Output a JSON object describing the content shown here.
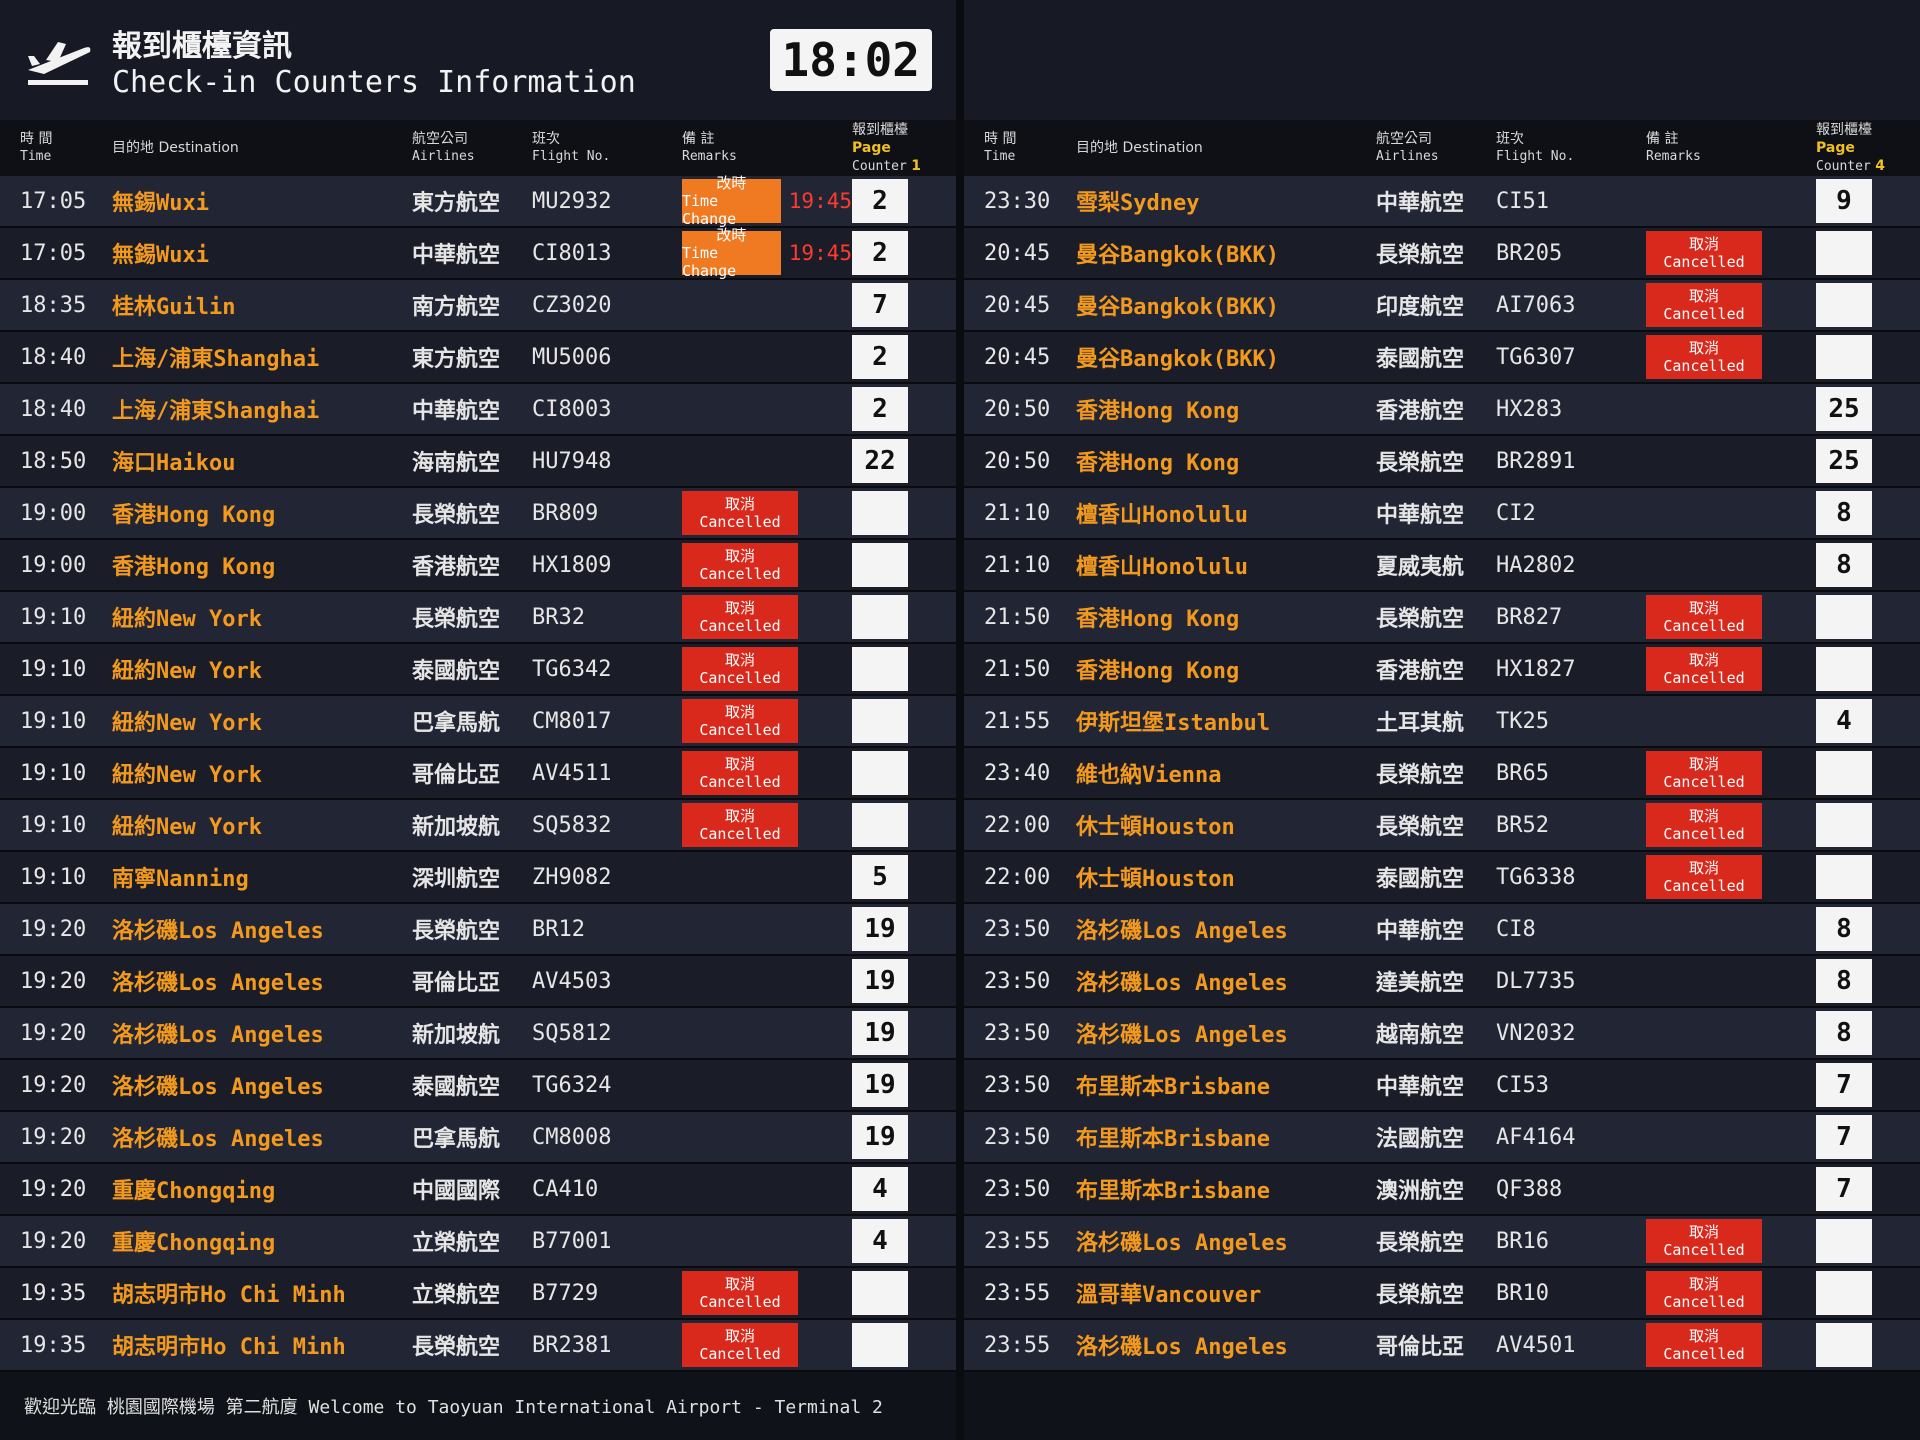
{
  "header": {
    "title_zh": "報到櫃檯資訊",
    "title_en": "Check-in Counters Information",
    "clock": "18:02"
  },
  "columns": {
    "time_zh": "時 間",
    "time_en": "Time",
    "dest": "目的地 Destination",
    "airline_zh": "航空公司",
    "airline_en": "Airlines",
    "flight_zh": "班次",
    "flight_en": "Flight No.",
    "remarks_zh": "備 註",
    "remarks_en": "Remarks",
    "counter_zh": "報到櫃檯",
    "counter_en": "Counter",
    "page_label": "Page"
  },
  "panels": [
    {
      "page": "1",
      "rows": [
        {
          "time": "17:05",
          "dest": "無錫Wuxi",
          "airline": "東方航空",
          "flight": "MU2932",
          "remark": {
            "zh": "改時",
            "en": "Time Change"
          },
          "new_time": "19:45",
          "counter": 2
        },
        {
          "time": "17:05",
          "dest": "無錫Wuxi",
          "airline": "中華航空",
          "flight": "CI8013",
          "remark": {
            "zh": "改時",
            "en": "Time Change"
          },
          "new_time": "19:45",
          "counter": 2
        },
        {
          "time": "18:35",
          "dest": "桂林Guilin",
          "airline": "南方航空",
          "flight": "CZ3020",
          "counter": 7
        },
        {
          "time": "18:40",
          "dest": "上海/浦東Shanghai",
          "airline": "東方航空",
          "flight": "MU5006",
          "counter": 2
        },
        {
          "time": "18:40",
          "dest": "上海/浦東Shanghai",
          "airline": "中華航空",
          "flight": "CI8003",
          "counter": 2
        },
        {
          "time": "18:50",
          "dest": "海口Haikou",
          "airline": "海南航空",
          "flight": "HU7948",
          "counter": 22
        },
        {
          "time": "19:00",
          "dest": "香港Hong Kong",
          "airline": "長榮航空",
          "flight": "BR809",
          "remark": {
            "zh": "取消",
            "en": "Cancelled"
          }
        },
        {
          "time": "19:00",
          "dest": "香港Hong Kong",
          "airline": "香港航空",
          "flight": "HX1809",
          "remark": {
            "zh": "取消",
            "en": "Cancelled"
          }
        },
        {
          "time": "19:10",
          "dest": "紐約New York",
          "airline": "長榮航空",
          "flight": "BR32",
          "remark": {
            "zh": "取消",
            "en": "Cancelled"
          }
        },
        {
          "time": "19:10",
          "dest": "紐約New York",
          "airline": "泰國航空",
          "flight": "TG6342",
          "remark": {
            "zh": "取消",
            "en": "Cancelled"
          }
        },
        {
          "time": "19:10",
          "dest": "紐約New York",
          "airline": "巴拿馬航",
          "flight": "CM8017",
          "remark": {
            "zh": "取消",
            "en": "Cancelled"
          }
        },
        {
          "time": "19:10",
          "dest": "紐約New York",
          "airline": "哥倫比亞",
          "flight": "AV4511",
          "remark": {
            "zh": "取消",
            "en": "Cancelled"
          }
        },
        {
          "time": "19:10",
          "dest": "紐約New York",
          "airline": "新加坡航",
          "flight": "SQ5832",
          "remark": {
            "zh": "取消",
            "en": "Cancelled"
          }
        },
        {
          "time": "19:10",
          "dest": "南寧Nanning",
          "airline": "深圳航空",
          "flight": "ZH9082",
          "counter": 5
        },
        {
          "time": "19:20",
          "dest": "洛杉磯Los Angeles",
          "airline": "長榮航空",
          "flight": "BR12",
          "counter": 19
        },
        {
          "time": "19:20",
          "dest": "洛杉磯Los Angeles",
          "airline": "哥倫比亞",
          "flight": "AV4503",
          "counter": 19
        },
        {
          "time": "19:20",
          "dest": "洛杉磯Los Angeles",
          "airline": "新加坡航",
          "flight": "SQ5812",
          "counter": 19
        },
        {
          "time": "19:20",
          "dest": "洛杉磯Los Angeles",
          "airline": "泰國航空",
          "flight": "TG6324",
          "counter": 19
        },
        {
          "time": "19:20",
          "dest": "洛杉磯Los Angeles",
          "airline": "巴拿馬航",
          "flight": "CM8008",
          "counter": 19
        },
        {
          "time": "19:20",
          "dest": "重慶Chongqing",
          "airline": "中國國際",
          "flight": "CA410",
          "counter": 4
        },
        {
          "time": "19:20",
          "dest": "重慶Chongqing",
          "airline": "立榮航空",
          "flight": "B77001",
          "counter": 4
        },
        {
          "time": "19:35",
          "dest": "胡志明市Ho Chi Minh",
          "airline": "立榮航空",
          "flight": "B7729",
          "remark": {
            "zh": "取消",
            "en": "Cancelled"
          }
        },
        {
          "time": "19:35",
          "dest": "胡志明市Ho Chi Minh",
          "airline": "長榮航空",
          "flight": "BR2381",
          "remark": {
            "zh": "取消",
            "en": "Cancelled"
          }
        }
      ]
    },
    {
      "page": "4",
      "rows": [
        {
          "time": "23:30",
          "dest": "雪梨Sydney",
          "airline": "中華航空",
          "flight": "CI51",
          "counter": 9
        },
        {
          "time": "20:45",
          "dest": "曼谷Bangkok(BKK)",
          "airline": "長榮航空",
          "flight": "BR205",
          "remark": {
            "zh": "取消",
            "en": "Cancelled"
          }
        },
        {
          "time": "20:45",
          "dest": "曼谷Bangkok(BKK)",
          "airline": "印度航空",
          "flight": "AI7063",
          "remark": {
            "zh": "取消",
            "en": "Cancelled"
          }
        },
        {
          "time": "20:45",
          "dest": "曼谷Bangkok(BKK)",
          "airline": "泰國航空",
          "flight": "TG6307",
          "remark": {
            "zh": "取消",
            "en": "Cancelled"
          }
        },
        {
          "time": "20:50",
          "dest": "香港Hong Kong",
          "airline": "香港航空",
          "flight": "HX283",
          "counter": 25
        },
        {
          "time": "20:50",
          "dest": "香港Hong Kong",
          "airline": "長榮航空",
          "flight": "BR2891",
          "counter": 25
        },
        {
          "time": "21:10",
          "dest": "檀香山Honolulu",
          "airline": "中華航空",
          "flight": "CI2",
          "counter": 8
        },
        {
          "time": "21:10",
          "dest": "檀香山Honolulu",
          "airline": "夏威夷航",
          "flight": "HA2802",
          "counter": 8
        },
        {
          "time": "21:50",
          "dest": "香港Hong Kong",
          "airline": "長榮航空",
          "flight": "BR827",
          "remark": {
            "zh": "取消",
            "en": "Cancelled"
          }
        },
        {
          "time": "21:50",
          "dest": "香港Hong Kong",
          "airline": "香港航空",
          "flight": "HX1827",
          "remark": {
            "zh": "取消",
            "en": "Cancelled"
          }
        },
        {
          "time": "21:55",
          "dest": "伊斯坦堡Istanbul",
          "airline": "土耳其航",
          "flight": "TK25",
          "counter": 4
        },
        {
          "time": "23:40",
          "dest": "維也納Vienna",
          "airline": "長榮航空",
          "flight": "BR65",
          "remark": {
            "zh": "取消",
            "en": "Cancelled"
          }
        },
        {
          "time": "22:00",
          "dest": "休士頓Houston",
          "airline": "長榮航空",
          "flight": "BR52",
          "remark": {
            "zh": "取消",
            "en": "Cancelled"
          }
        },
        {
          "time": "22:00",
          "dest": "休士頓Houston",
          "airline": "泰國航空",
          "flight": "TG6338",
          "remark": {
            "zh": "取消",
            "en": "Cancelled"
          }
        },
        {
          "time": "23:50",
          "dest": "洛杉磯Los Angeles",
          "airline": "中華航空",
          "flight": "CI8",
          "counter": 8
        },
        {
          "time": "23:50",
          "dest": "洛杉磯Los Angeles",
          "airline": "達美航空",
          "flight": "DL7735",
          "counter": 8
        },
        {
          "time": "23:50",
          "dest": "洛杉磯Los Angeles",
          "airline": "越南航空",
          "flight": "VN2032",
          "counter": 8
        },
        {
          "time": "23:50",
          "dest": "布里斯本Brisbane",
          "airline": "中華航空",
          "flight": "CI53",
          "counter": 7
        },
        {
          "time": "23:50",
          "dest": "布里斯本Brisbane",
          "airline": "法國航空",
          "flight": "AF4164",
          "counter": 7
        },
        {
          "time": "23:50",
          "dest": "布里斯本Brisbane",
          "airline": "澳洲航空",
          "flight": "QF388",
          "counter": 7
        },
        {
          "time": "23:55",
          "dest": "洛杉磯Los Angeles",
          "airline": "長榮航空",
          "flight": "BR16",
          "remark": {
            "zh": "取消",
            "en": "Cancelled"
          }
        },
        {
          "time": "23:55",
          "dest": "溫哥華Vancouver",
          "airline": "長榮航空",
          "flight": "BR10",
          "remark": {
            "zh": "取消",
            "en": "Cancelled"
          }
        },
        {
          "time": "23:55",
          "dest": "洛杉磯Los Angeles",
          "airline": "哥倫比亞",
          "flight": "AV4501",
          "remark": {
            "zh": "取消",
            "en": "Cancelled"
          }
        }
      ]
    }
  ],
  "footer": {
    "text": "歡迎光臨 桃園國際機場 第二航廈 Welcome to Taoyuan International Airport - Terminal 2"
  }
}
